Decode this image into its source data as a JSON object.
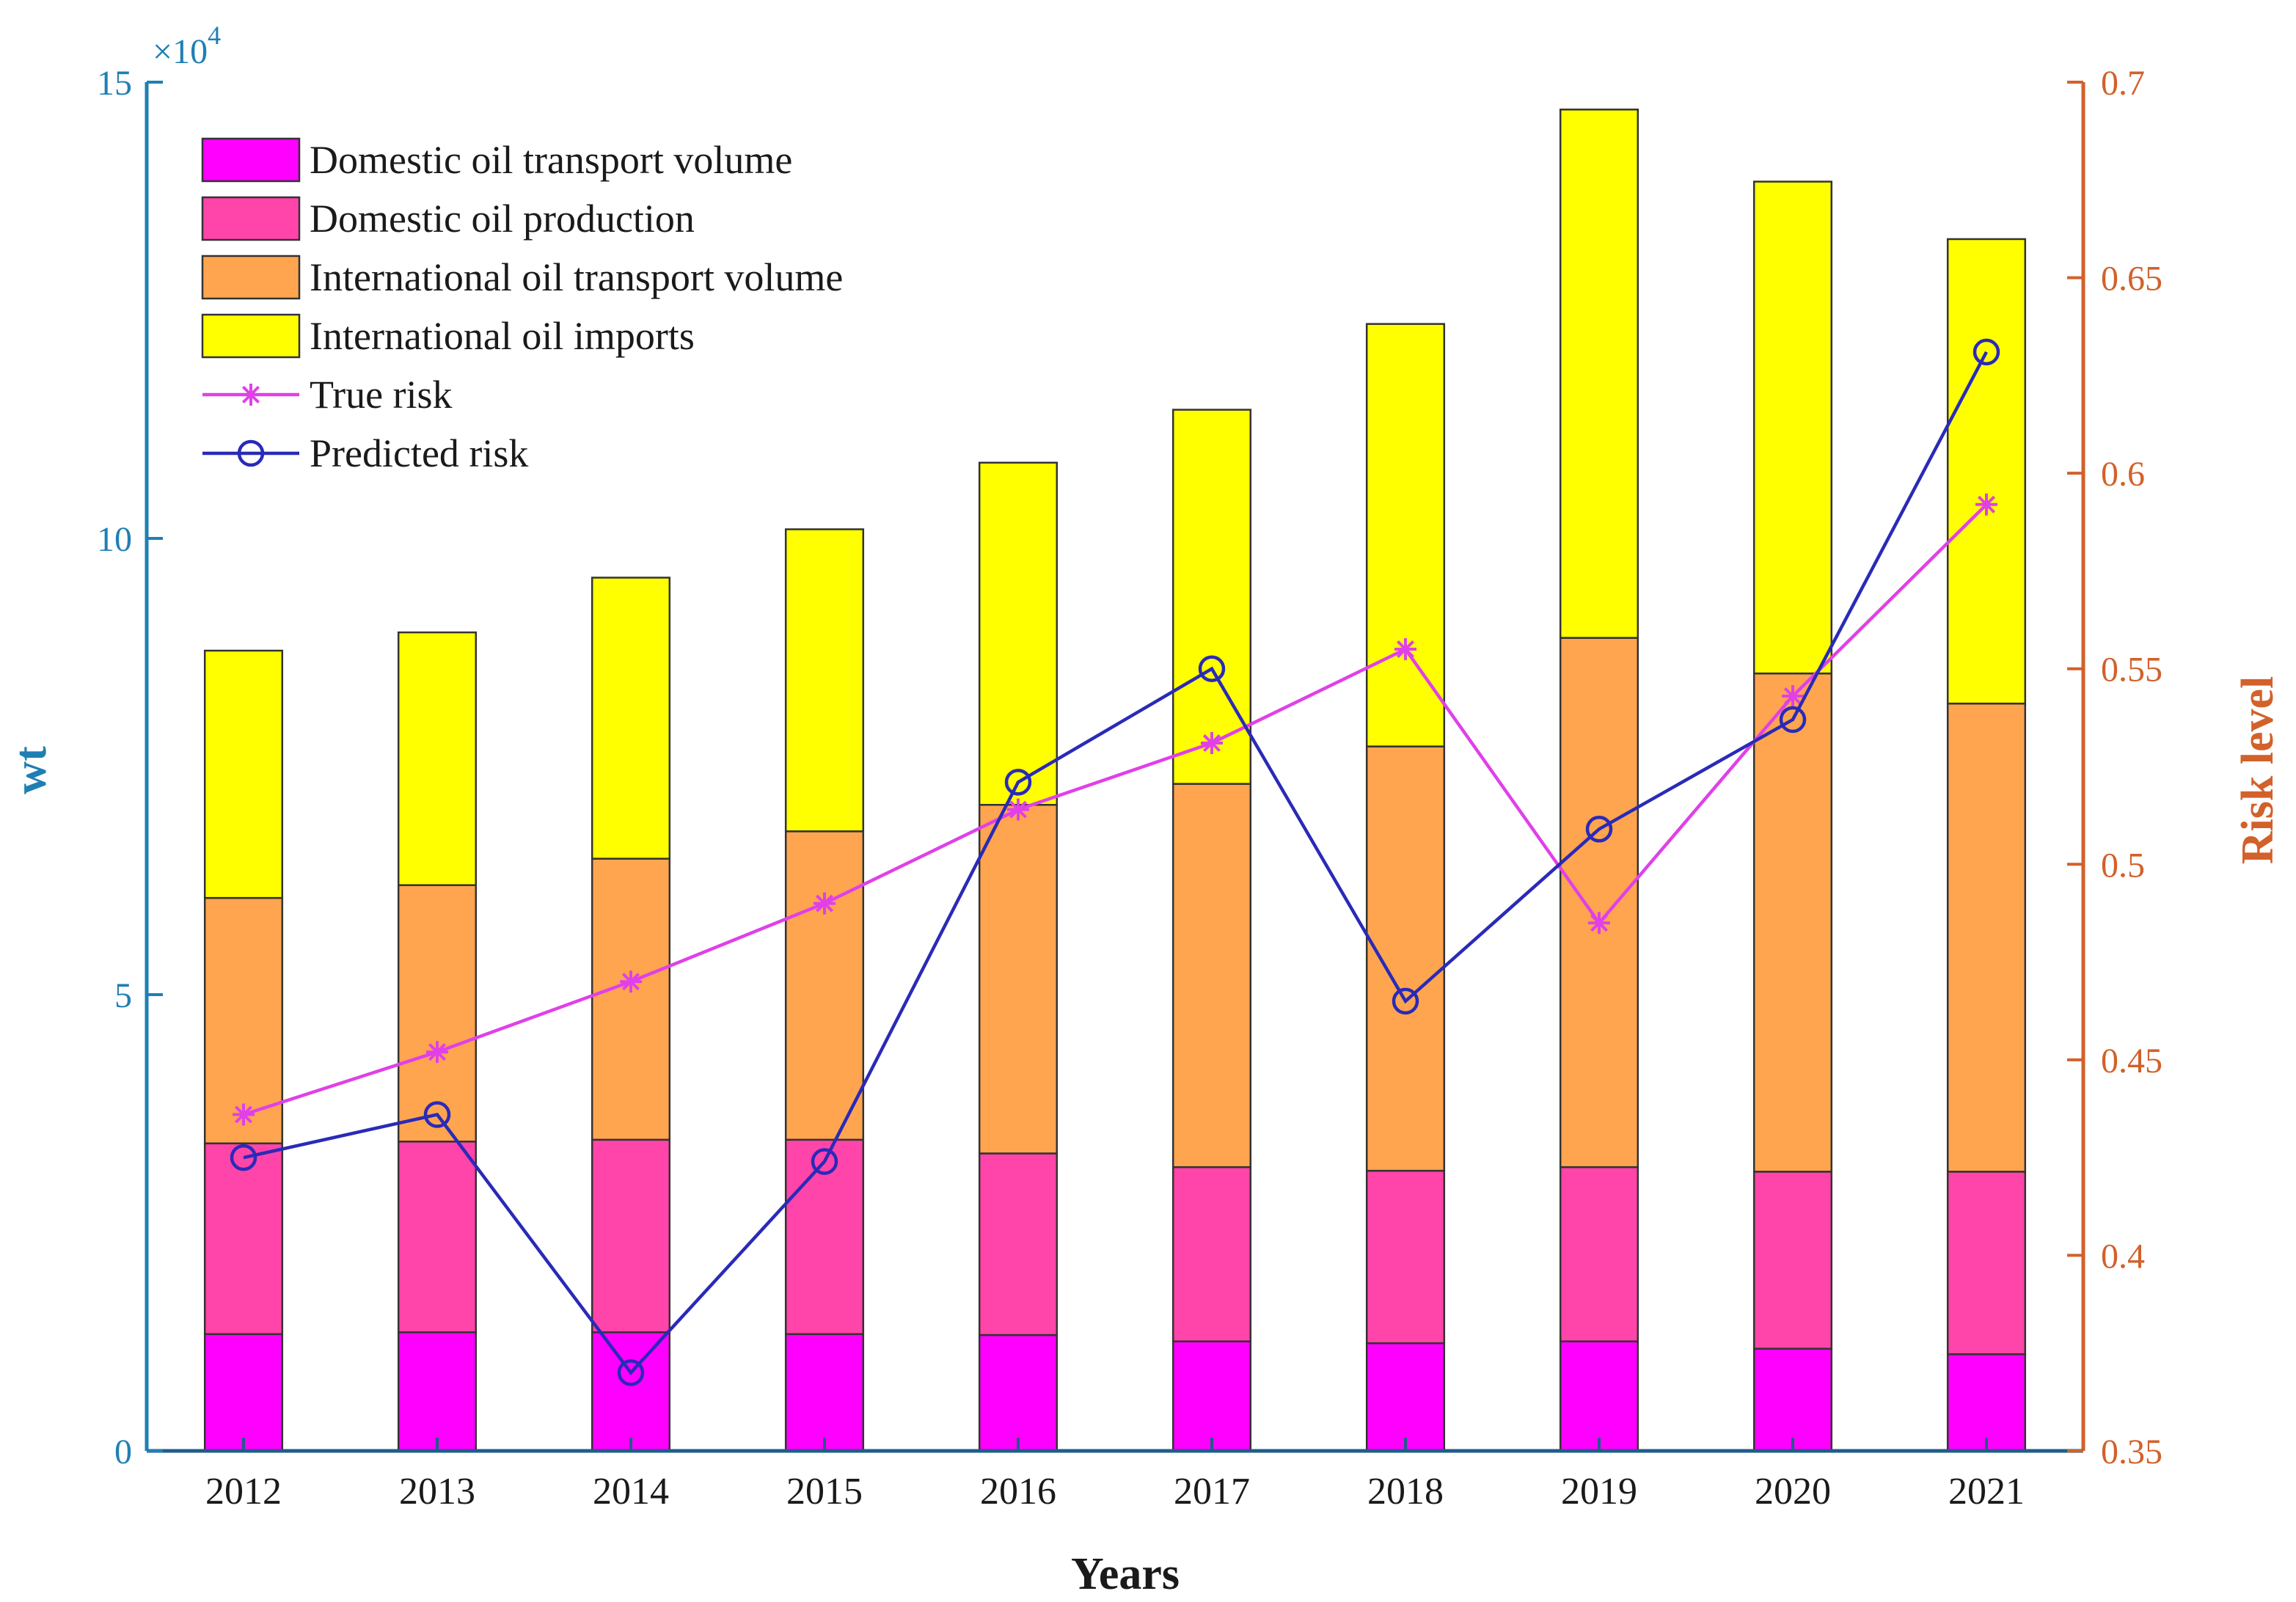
{
  "chart_data": {
    "type": "bar",
    "subtype": "stacked-bar-with-dual-axis-lines",
    "xlabel": "Years",
    "ylabel_left": "wt",
    "ylabel_right": "Risk level",
    "left_axis_multiplier": "×10",
    "left_axis_multiplier_exponent": "4",
    "categories": [
      "2012",
      "2013",
      "2014",
      "2015",
      "2016",
      "2017",
      "2018",
      "2019",
      "2020",
      "2021"
    ],
    "ylim_left": [
      0,
      15
    ],
    "yticks_left": [
      0,
      5,
      10,
      15
    ],
    "ytick_labels_left": [
      "0",
      "5",
      "10",
      "15"
    ],
    "ylim_right": [
      0.35,
      0.7
    ],
    "yticks_right": [
      0.35,
      0.4,
      0.45,
      0.5,
      0.55,
      0.6,
      0.65,
      0.7
    ],
    "ytick_labels_right": [
      "0.35",
      "0.4",
      "0.45",
      "0.5",
      "0.55",
      "0.6",
      "0.65",
      "0.7"
    ],
    "legend_position": "top-left",
    "bar_series": [
      {
        "name": "Domestic oil transport volume",
        "color": "#ff00ff",
        "values": [
          1.28,
          1.3,
          1.3,
          1.28,
          1.27,
          1.2,
          1.18,
          1.2,
          1.12,
          1.06
        ]
      },
      {
        "name": "Domestic oil production",
        "color": "#ff44aa",
        "values": [
          2.09,
          2.09,
          2.11,
          2.13,
          1.99,
          1.91,
          1.89,
          1.91,
          1.94,
          2.0
        ]
      },
      {
        "name": "International oil transport volume",
        "color": "#ffa54f",
        "values": [
          2.69,
          2.81,
          3.08,
          3.38,
          3.82,
          4.2,
          4.65,
          5.8,
          5.46,
          5.13
        ]
      },
      {
        "name": "International oil imports",
        "color": "#ffff00",
        "values": [
          2.71,
          2.77,
          3.08,
          3.31,
          3.75,
          4.1,
          4.63,
          5.79,
          5.39,
          5.09
        ]
      }
    ],
    "line_series": [
      {
        "name": "True risk",
        "color": "#e040e8",
        "marker": "asterisk",
        "values": [
          0.436,
          0.452,
          0.47,
          0.49,
          0.514,
          0.531,
          0.555,
          0.485,
          0.543,
          0.592
        ]
      },
      {
        "name": "Predicted risk",
        "color": "#2a2ab8",
        "marker": "circle",
        "values": [
          0.425,
          0.436,
          0.37,
          0.424,
          0.521,
          0.55,
          0.465,
          0.509,
          0.537,
          0.631
        ]
      }
    ]
  }
}
